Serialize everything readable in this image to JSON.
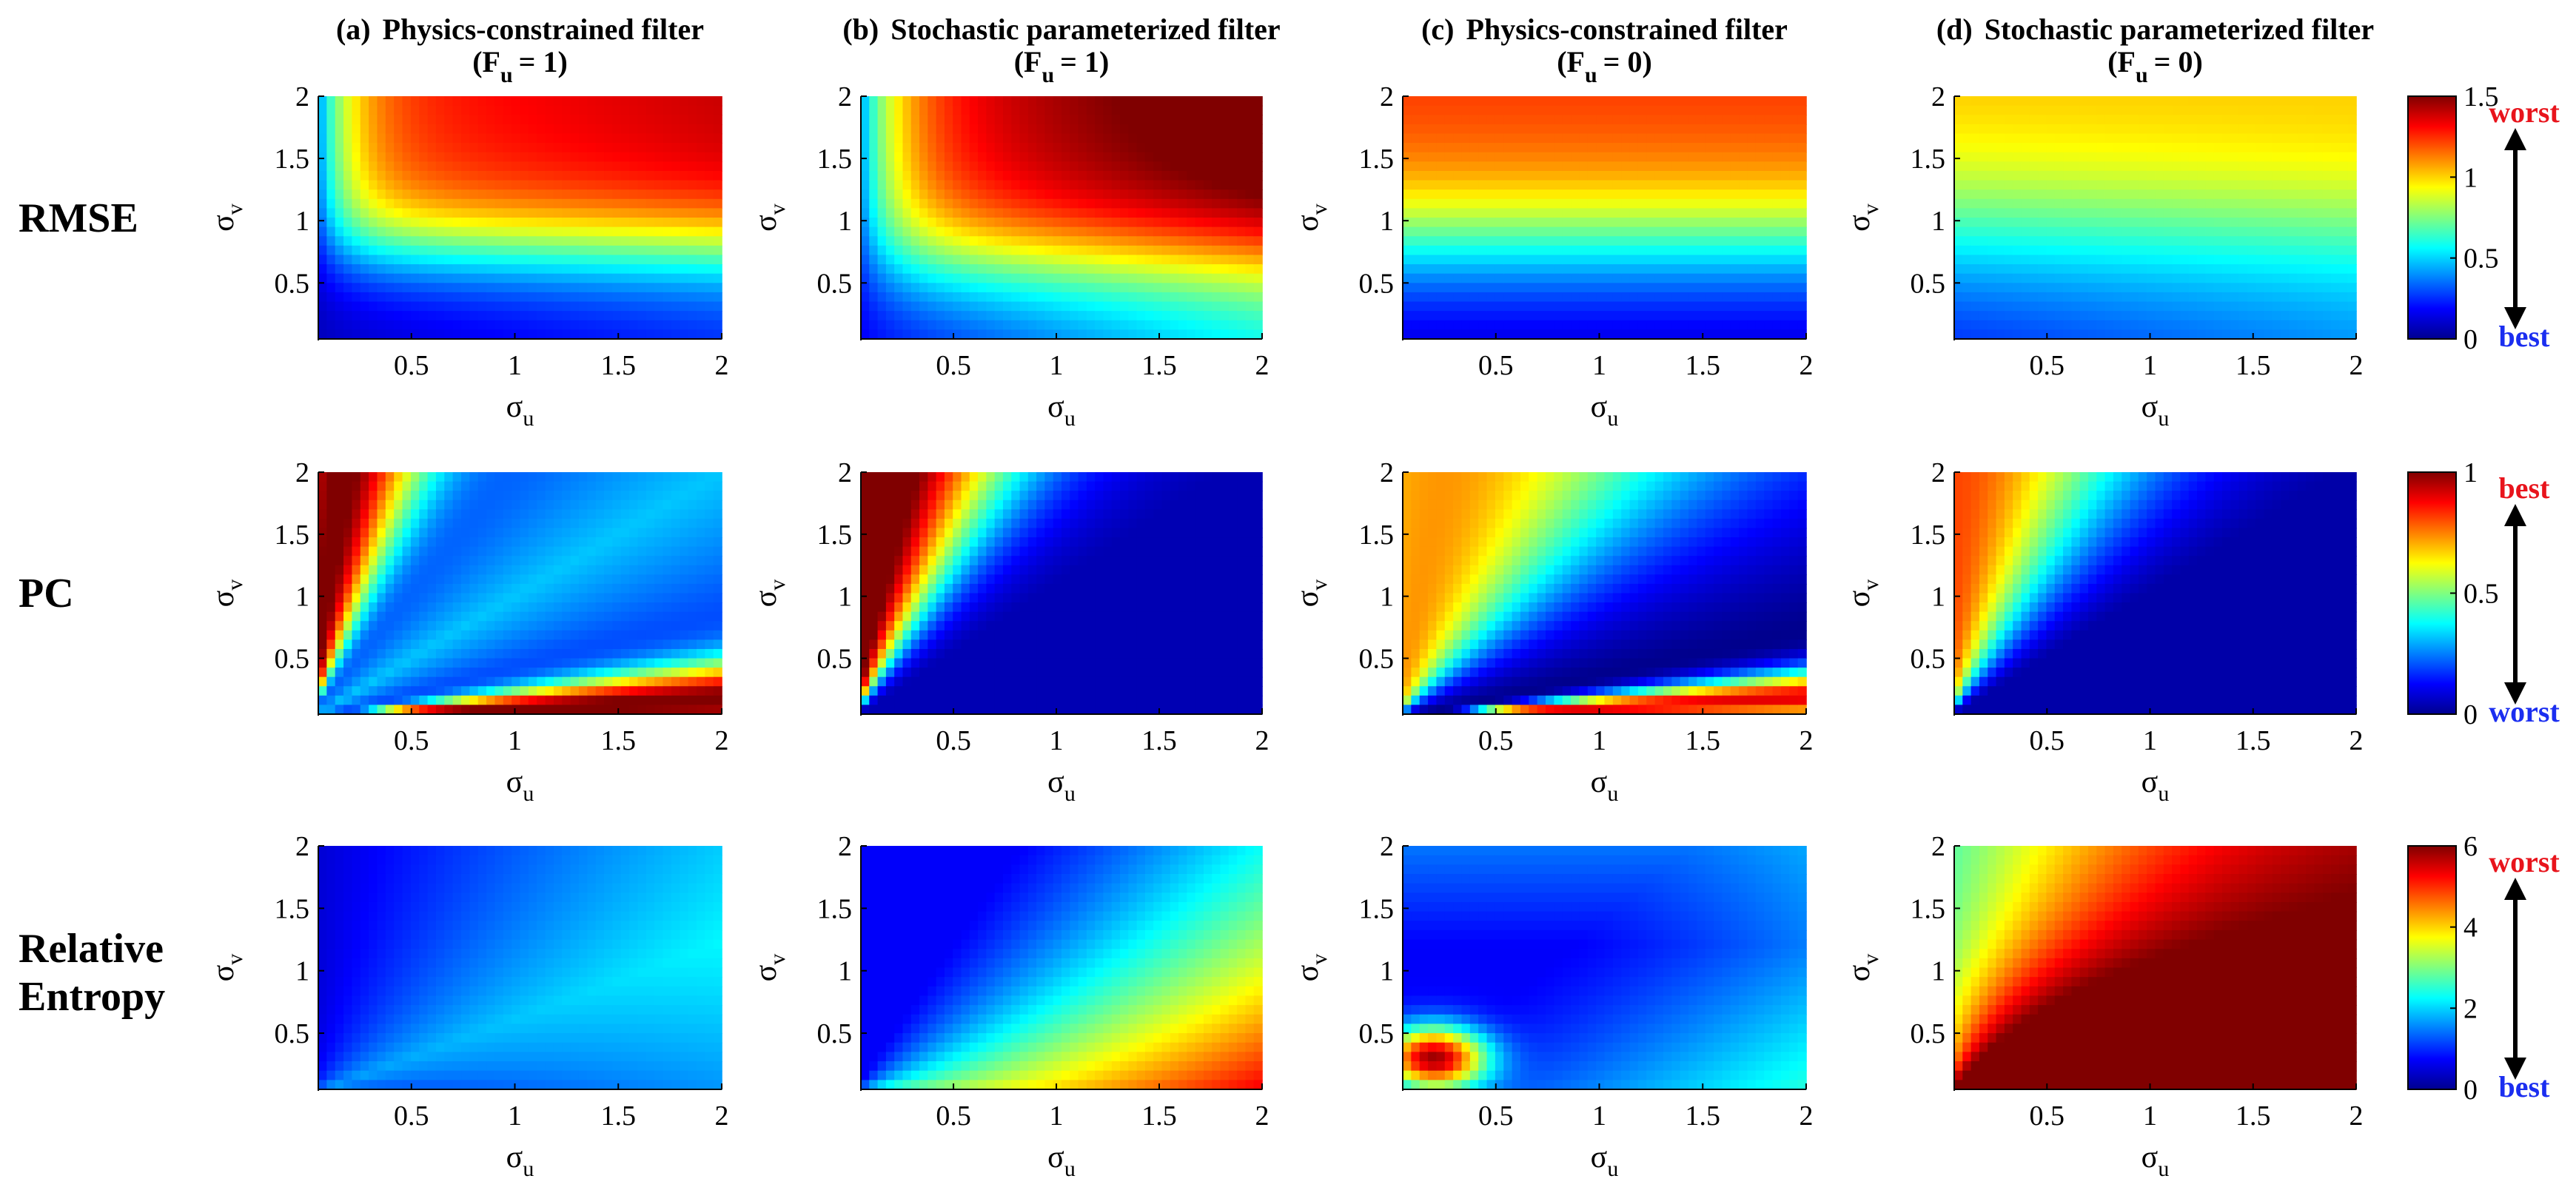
{
  "columns": [
    {
      "letter": "(a)",
      "title": "Physics-constrained filter",
      "sub": "(F",
      "subsub": "u",
      "sub_tail": "= 1)"
    },
    {
      "letter": "(b)",
      "title": "Stochastic parameterized filter",
      "sub": "(F",
      "subsub": "u",
      "sub_tail": "= 1)"
    },
    {
      "letter": "(c)",
      "title": "Physics-constrained filter",
      "sub": "(F",
      "subsub": "u",
      "sub_tail": "= 0)"
    },
    {
      "letter": "(d)",
      "title": "Stochastic parameterized filter",
      "sub": "(F",
      "subsub": "u",
      "sub_tail": "= 0)"
    }
  ],
  "rows": [
    {
      "label_lines": [
        "RMSE"
      ],
      "colorbar": {
        "ticks": [
          "0",
          "0.5",
          "1",
          "1.5"
        ],
        "top_word": "worst",
        "bottom_word": "best",
        "top_color": "#e8141c",
        "bottom_color": "#1b2ef0"
      }
    },
    {
      "label_lines": [
        "PC"
      ],
      "colorbar": {
        "ticks": [
          "0",
          "0.5",
          "1"
        ],
        "top_word": "best",
        "bottom_word": "worst",
        "top_color": "#e8141c",
        "bottom_color": "#1b2ef0"
      }
    },
    {
      "label_lines": [
        "Relative",
        "Entropy"
      ],
      "colorbar": {
        "ticks": [
          "0",
          "2",
          "4",
          "6"
        ],
        "top_word": "worst",
        "bottom_word": "best",
        "top_color": "#e8141c",
        "bottom_color": "#1b2ef0"
      }
    }
  ],
  "axes": {
    "xlabel": "σ",
    "xlabel_sub": "u",
    "ylabel": "σ",
    "ylabel_sub": "v",
    "xticks": [
      "0.5",
      "1",
      "1.5",
      "2"
    ],
    "yticks": [
      "0.5",
      "1",
      "1.5",
      "2"
    ]
  },
  "chart_data": {
    "type": "heatmap",
    "colormap": "jet",
    "x_range": [
      0.05,
      2
    ],
    "y_range": [
      0.05,
      2
    ],
    "rows": [
      "RMSE",
      "PC",
      "Relative Entropy"
    ],
    "columns": [
      "(a) Physics-constrained filter (Fu = 1)",
      "(b) Stochastic parameterized filter (Fu = 1)",
      "(c) Physics-constrained filter (Fu = 0)",
      "(d) Stochastic parameterized filter (Fu = 0)"
    ],
    "color_limits": {
      "RMSE": [
        0,
        1.5
      ],
      "PC": [
        0,
        1
      ],
      "Relative Entropy": [
        0,
        6
      ]
    }
  }
}
